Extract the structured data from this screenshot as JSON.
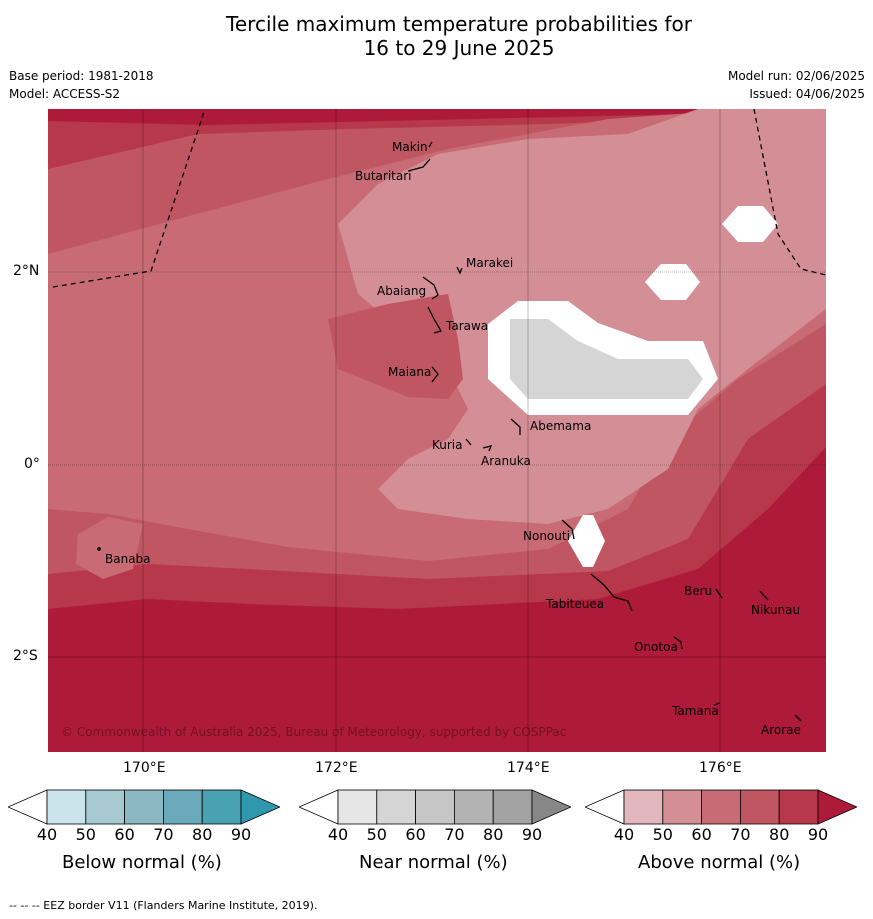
{
  "title_line1": "Tercile maximum temperature probabilities for",
  "title_line2": "16 to 29 June 2025",
  "base_period": "Base period: 1981-2018",
  "model": "Model: ACCESS-S2",
  "model_run": "Model run: 02/06/2025",
  "issued": "Issued: 04/06/2025",
  "copyright": "© Commonwealth of Australia 2025, Bureau of Meteorology, supported by COSPPac",
  "axes": {
    "x_ticks": [
      "170°E",
      "172°E",
      "174°E",
      "176°E"
    ],
    "y_ticks": [
      "2°N",
      "0°",
      "2°S"
    ]
  },
  "places": [
    "Makin",
    "Butaritari",
    "Marakei",
    "Abaiang",
    "Tarawa",
    "Maiana",
    "Abemama",
    "Kuria",
    "Aranuka",
    "Nonouti",
    "Banaba",
    "Tabiteuea",
    "Beru",
    "Nikunau",
    "Onotoa",
    "Tamana",
    "Arorae"
  ],
  "colorbars": [
    {
      "label": "Below normal (%)",
      "ticks": [
        "40",
        "50",
        "60",
        "70",
        "80",
        "90"
      ],
      "colors": [
        "#ffffff",
        "#cbe3ea",
        "#a7c9d1",
        "#8cb8c4",
        "#6aaaba",
        "#49a2b2",
        "#2f98ad"
      ]
    },
    {
      "label": "Near normal (%)",
      "ticks": [
        "40",
        "50",
        "60",
        "70",
        "80",
        "90"
      ],
      "colors": [
        "#ffffff",
        "#e6e6e6",
        "#d5d5d5",
        "#c6c6c6",
        "#b3b3b3",
        "#a2a2a2",
        "#878787"
      ]
    },
    {
      "label": "Above normal (%)",
      "ticks": [
        "40",
        "50",
        "60",
        "70",
        "80",
        "90"
      ],
      "colors": [
        "#ffffff",
        "#e2b7bd",
        "#d48e96",
        "#c96b74",
        "#c05661",
        "#b6384a",
        "#ae1a3a"
      ]
    }
  ],
  "footnote": "--  --  -- EEZ border V11 (Flanders Marine Institute, 2019)."
}
